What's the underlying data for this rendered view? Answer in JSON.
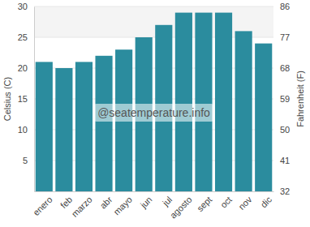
{
  "chart_data": {
    "type": "bar",
    "y_label": "Celsius (C)",
    "y2_label": "Fahrenheit (F)",
    "annotations": [
      "@seatemperature.info"
    ],
    "categories": [
      "enero",
      "feb",
      "marzo",
      "abr",
      "mayo",
      "jun",
      "jul",
      "agosto",
      "sept",
      "oct",
      "nov",
      "dic"
    ],
    "values": [
      21,
      20,
      21,
      22,
      23,
      25,
      27,
      29,
      29,
      29,
      26,
      24
    ],
    "color": "#2b8c9e",
    "ylim": [
      0,
      30
    ],
    "yticks": [
      5,
      10,
      15,
      20,
      25,
      30
    ],
    "y2lim": [
      32,
      86
    ],
    "y2ticks": [
      32,
      41,
      50,
      59,
      68,
      77,
      86
    ],
    "grid": true
  }
}
